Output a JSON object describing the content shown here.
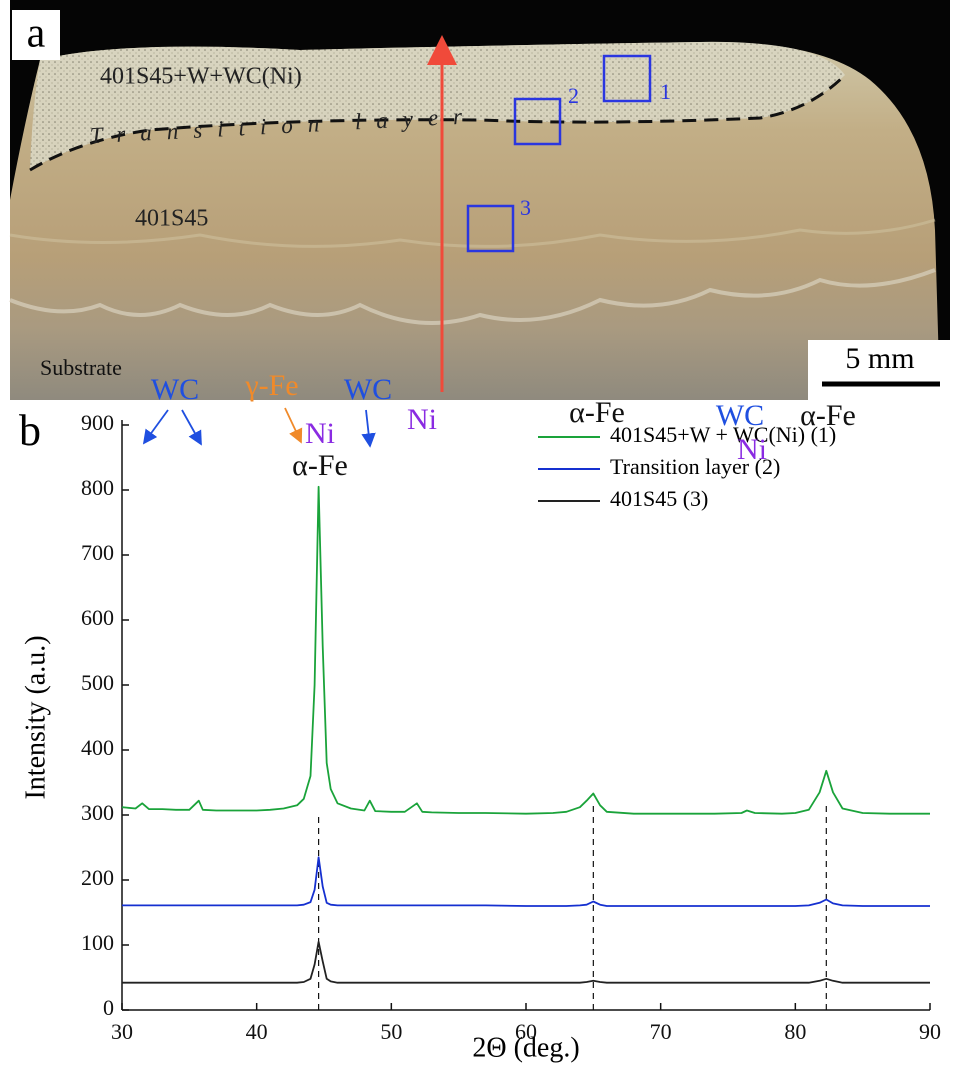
{
  "photo": {
    "panel_label": "a",
    "region_labels": [
      "401S45+W+WC(Ni)",
      "Transition layer",
      "401S45",
      "Substrate"
    ],
    "box_labels": [
      "1",
      "2",
      "3"
    ],
    "scale_bar": "5 mm"
  },
  "chart_data": {
    "type": "line",
    "panel_label": "b",
    "x_label": "2Θ (deg.)",
    "y_label": "Intensity (a.u.)",
    "xlim": [
      30,
      90
    ],
    "xticks": [
      30,
      40,
      50,
      60,
      70,
      80,
      90
    ],
    "ylim": [
      0,
      900
    ],
    "yticks": [
      0,
      100,
      200,
      300,
      400,
      500,
      600,
      700,
      800,
      900
    ],
    "x": [
      30,
      31,
      31.5,
      32,
      33,
      34,
      35,
      35.7,
      36,
      37,
      38,
      39,
      40,
      41,
      42,
      43,
      43.5,
      44,
      44.3,
      44.6,
      44.9,
      45.2,
      45.5,
      46,
      47,
      48,
      48.4,
      48.8,
      50,
      51,
      51.9,
      52.3,
      53,
      55,
      57,
      60,
      62,
      63,
      64,
      64.5,
      65,
      65.5,
      66,
      68,
      70,
      72,
      74,
      76,
      76.4,
      77,
      79,
      80,
      81,
      81.8,
      82.3,
      82.8,
      83.5,
      85,
      87,
      90
    ],
    "series": [
      {
        "name": "401S45+W + WC(Ni) (1)",
        "color": "#1aa33a",
        "values": [
          312,
          310,
          318,
          309,
          309,
          308,
          308,
          322,
          308,
          307,
          307,
          307,
          307,
          308,
          310,
          315,
          325,
          360,
          500,
          805,
          560,
          380,
          340,
          318,
          310,
          307,
          322,
          306,
          305,
          305,
          318,
          305,
          304,
          303,
          303,
          302,
          303,
          305,
          312,
          322,
          333,
          315,
          305,
          302,
          302,
          302,
          302,
          303,
          307,
          303,
          302,
          303,
          308,
          335,
          368,
          335,
          310,
          303,
          302,
          302
        ]
      },
      {
        "name": "Transition layer (2)",
        "color": "#1530d0",
        "values": [
          161,
          161,
          161,
          161,
          161,
          161,
          161,
          161,
          161,
          161,
          161,
          161,
          161,
          161,
          161,
          161,
          162,
          166,
          185,
          235,
          190,
          165,
          162,
          161,
          161,
          161,
          161,
          161,
          161,
          161,
          161,
          161,
          161,
          161,
          161,
          160,
          160,
          160,
          161,
          162,
          167,
          162,
          160,
          160,
          160,
          160,
          160,
          160,
          160,
          160,
          160,
          160,
          161,
          165,
          170,
          164,
          161,
          160,
          160,
          160
        ]
      },
      {
        "name": "401S45 (3)",
        "color": "#222222",
        "values": [
          42,
          42,
          42,
          42,
          42,
          42,
          42,
          42,
          42,
          42,
          42,
          42,
          42,
          42,
          42,
          42,
          43,
          48,
          70,
          105,
          75,
          48,
          44,
          42,
          42,
          42,
          42,
          42,
          42,
          42,
          42,
          42,
          42,
          42,
          42,
          42,
          42,
          42,
          42,
          43,
          45,
          43,
          42,
          42,
          42,
          42,
          42,
          42,
          42,
          42,
          42,
          42,
          42,
          45,
          48,
          45,
          42,
          42,
          42,
          42
        ]
      }
    ],
    "reference_lines": [
      44.6,
      65,
      82.3
    ],
    "annotations": [
      {
        "text": "Ni",
        "color": "#8a2be2"
      },
      {
        "text": "α-Fe",
        "color": "#111111"
      },
      {
        "text": "WC",
        "color": "#1f4fe0"
      },
      {
        "text": "γ-Fe",
        "color": "#f08a2a"
      },
      {
        "text": "WC",
        "color": "#1f4fe0"
      },
      {
        "text": "Ni",
        "color": "#8a2be2"
      },
      {
        "text": "α-Fe",
        "color": "#111111"
      },
      {
        "text": "WC",
        "color": "#1f4fe0"
      },
      {
        "text": "Ni",
        "color": "#8a2be2"
      },
      {
        "text": "α-Fe",
        "color": "#111111"
      }
    ]
  }
}
